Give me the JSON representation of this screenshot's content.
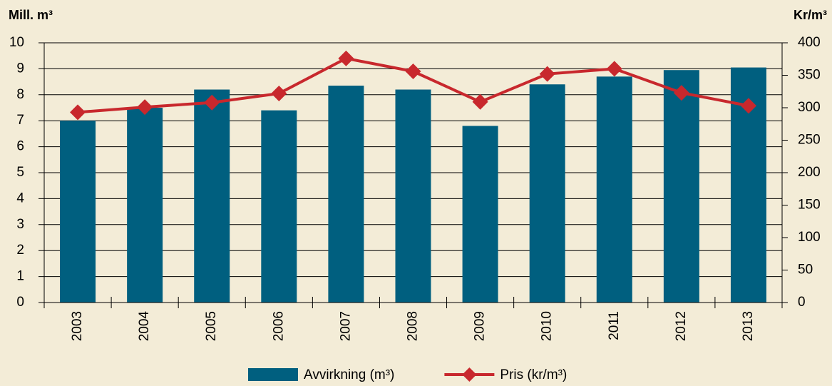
{
  "chart_data": {
    "type": "bar-line",
    "y_label": "Mill. m³",
    "y2_label": "Kr/m³",
    "categories": [
      "2003",
      "2004",
      "2005",
      "2006",
      "2007",
      "2008",
      "2009",
      "2010",
      "2011",
      "2012",
      "2013"
    ],
    "series": [
      {
        "name": "Avvirkning (m³)",
        "type": "bar",
        "color": "#005f7f",
        "values": [
          7.0,
          7.5,
          8.2,
          7.4,
          8.35,
          8.2,
          6.8,
          8.4,
          8.7,
          8.95,
          9.05
        ]
      },
      {
        "name": "Pris (kr/m³)",
        "type": "line",
        "axis": "y2",
        "color": "#c8282d",
        "values": [
          293,
          301,
          308,
          322,
          376,
          356,
          309,
          352,
          360,
          323,
          303
        ]
      }
    ],
    "ylim": [
      0,
      10
    ],
    "yticks": [
      0,
      1,
      2,
      3,
      4,
      5,
      6,
      7,
      8,
      9,
      10
    ],
    "y2lim": [
      0,
      400
    ],
    "y2ticks": [
      0,
      50,
      100,
      150,
      200,
      250,
      300,
      350,
      400
    ],
    "grid": true,
    "legend": "bottom"
  }
}
